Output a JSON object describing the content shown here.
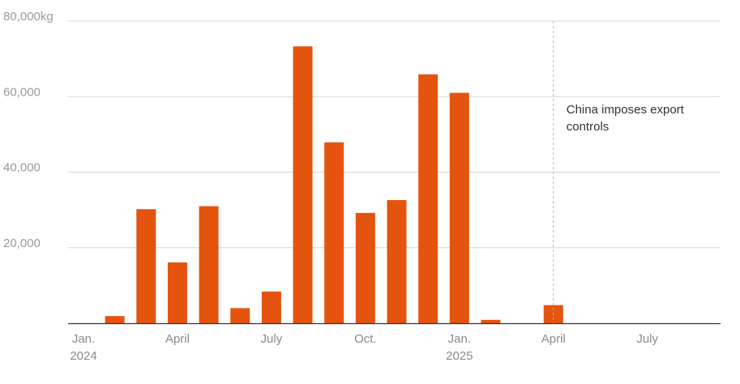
{
  "chart_data": {
    "type": "bar",
    "categories": [
      "Jan. 2024",
      "Feb. 2024",
      "Mar. 2024",
      "April 2024",
      "May 2024",
      "June 2024",
      "July 2024",
      "Aug. 2024",
      "Sept. 2024",
      "Oct. 2024",
      "Nov. 2024",
      "Dec. 2024",
      "Jan. 2025",
      "Feb. 2025",
      "Mar. 2025",
      "April 2025",
      "May 2025",
      "June 2025",
      "July 2025",
      "Aug. 2025"
    ],
    "values": [
      0,
      1900,
      30200,
      16100,
      31000,
      4000,
      8400,
      73300,
      47900,
      29200,
      32600,
      65900,
      61000,
      900,
      0,
      4800,
      0,
      0,
      0,
      0
    ],
    "ylim": [
      0,
      80000
    ],
    "yticks": [
      {
        "value": 80000,
        "label": "80,000kg"
      },
      {
        "value": 60000,
        "label": "60,000"
      },
      {
        "value": 40000,
        "label": "40,000"
      },
      {
        "value": 20000,
        "label": "20,000"
      }
    ],
    "xticks": [
      {
        "index": 0,
        "label": "Jan.",
        "sublabel": "2024"
      },
      {
        "index": 3,
        "label": "April",
        "sublabel": ""
      },
      {
        "index": 6,
        "label": "July",
        "sublabel": ""
      },
      {
        "index": 9,
        "label": "Oct.",
        "sublabel": ""
      },
      {
        "index": 12,
        "label": "Jan.",
        "sublabel": "2025"
      },
      {
        "index": 15,
        "label": "April",
        "sublabel": ""
      },
      {
        "index": 18,
        "label": "July",
        "sublabel": ""
      }
    ],
    "annotation": {
      "index": 15,
      "lines": [
        "China imposes export",
        "controls"
      ]
    },
    "bar_color": "#e4540f",
    "grid": true
  }
}
